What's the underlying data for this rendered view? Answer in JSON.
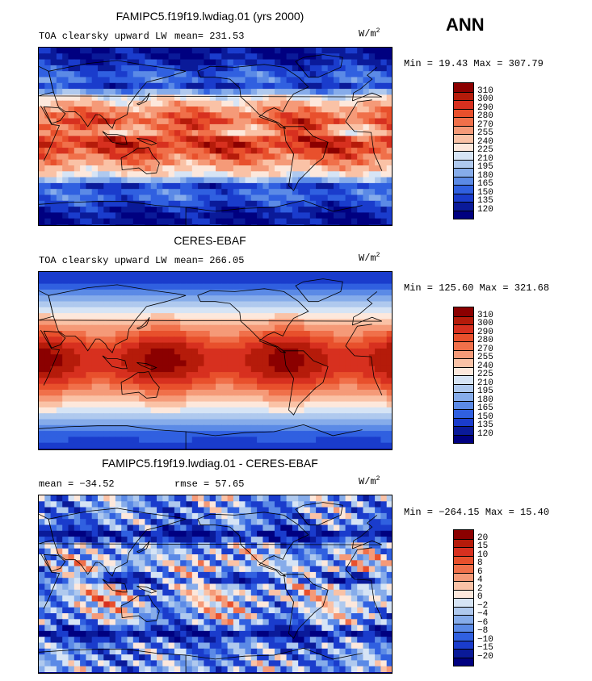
{
  "season": "ANN",
  "units_base": "W/m",
  "units_exp": "2",
  "panels": [
    {
      "title": "FAMIPC5.f19f19.lwdiag.01 (yrs 2000)",
      "subtitle": "TOA clearsky upward LW",
      "mean_text": "mean= 231.53",
      "minmax": "Min =  19.43 Max = 307.79",
      "levels": [
        "310",
        "300",
        "290",
        "280",
        "270",
        "255",
        "240",
        "225",
        "210",
        "195",
        "180",
        "165",
        "150",
        "135",
        "120"
      ]
    },
    {
      "title": "CERES-EBAF",
      "subtitle": "TOA clearsky upward LW",
      "mean_text": "mean= 266.05",
      "minmax": "Min = 125.60 Max = 321.68",
      "levels": [
        "310",
        "300",
        "290",
        "280",
        "270",
        "255",
        "240",
        "225",
        "210",
        "195",
        "180",
        "165",
        "150",
        "135",
        "120"
      ]
    },
    {
      "title": "FAMIPC5.f19f19.lwdiag.01 - CERES-EBAF",
      "mean_text": "mean = −34.52",
      "rmse_text": "rmse =  57.65",
      "minmax": "Min = −264.15 Max =  15.40",
      "levels": [
        "20",
        "15",
        "10",
        "8",
        "6",
        "4",
        "2",
        "0",
        "−2",
        "−4",
        "−6",
        "−8",
        "−10",
        "−15",
        "−20"
      ]
    }
  ],
  "palette": [
    "#8b0000",
    "#b51b0a",
    "#d7301f",
    "#e8502c",
    "#f0704a",
    "#f59a78",
    "#fac2a6",
    "#fde8dc",
    "#d6e4f5",
    "#afc9ee",
    "#86acea",
    "#5b8ae6",
    "#3060e0",
    "#1a3ccc",
    "#0a1a99",
    "#000080"
  ]
}
